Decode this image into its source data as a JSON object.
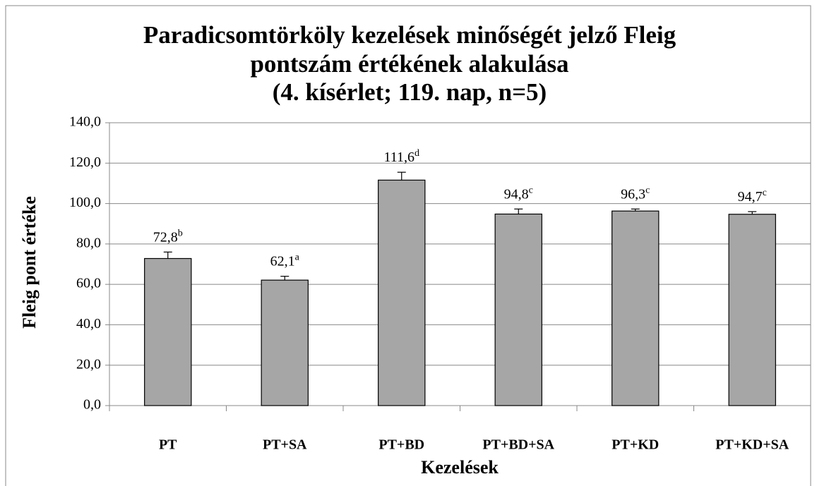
{
  "chart_data": {
    "type": "bar",
    "title": [
      "Paradicsomtörköly kezelések minőségét jelző Fleig",
      "pontszám értékének alakulása",
      "(4. kísérlet; 119. nap, n=5)"
    ],
    "x_label": "Kezelések",
    "y_label": "Fleig pont értéke",
    "categories": [
      "PT",
      "PT+SA",
      "PT+BD",
      "PT+BD+SA",
      "PT+KD",
      "PT+KD+SA"
    ],
    "values": [
      72.8,
      62.1,
      111.6,
      94.8,
      96.3,
      94.7
    ],
    "value_labels": [
      "72,8",
      "62,1",
      "111,6",
      "94,8",
      "96,3",
      "94,7"
    ],
    "significance": [
      "b",
      "a",
      "d",
      "c",
      "c",
      "c"
    ],
    "errors": [
      3.2,
      1.9,
      3.9,
      2.5,
      1.0,
      1.3
    ],
    "color": "#a6a6a6",
    "ylim": [
      0,
      140
    ],
    "yticks": [
      {
        "value": 0,
        "label": "0,0"
      },
      {
        "value": 20,
        "label": "20,0"
      },
      {
        "value": 40,
        "label": "40,0"
      },
      {
        "value": 60,
        "label": "60,0"
      },
      {
        "value": 80,
        "label": "80,0"
      },
      {
        "value": 100,
        "label": "100,0"
      },
      {
        "value": 120,
        "label": "120,0"
      },
      {
        "value": 140,
        "label": "140,0"
      }
    ],
    "grid": true
  }
}
